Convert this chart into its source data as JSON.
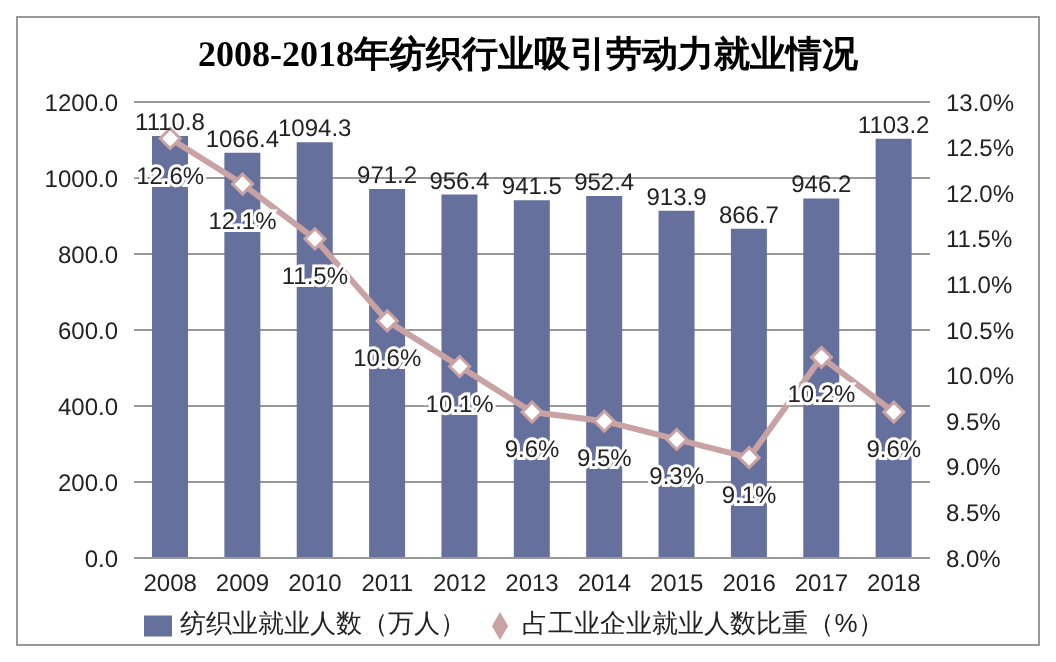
{
  "chart_data": {
    "type": "bar",
    "title": "2008-2018年纺织行业吸引劳动力就业情况",
    "categories": [
      "2008",
      "2009",
      "2010",
      "2011",
      "2012",
      "2013",
      "2014",
      "2015",
      "2016",
      "2017",
      "2018"
    ],
    "series": [
      {
        "name": "纺织业就业人数（万人）",
        "color": "#65709c",
        "values": [
          1110.8,
          1066.4,
          1094.3,
          971.2,
          956.4,
          941.5,
          952.4,
          913.9,
          866.7,
          946.2,
          1103.2
        ],
        "value_labels": [
          "1110.8",
          "1066.4",
          "1094.3",
          "971.2",
          "956.4",
          "941.5",
          "952.4",
          "913.9",
          "866.7",
          "946.2",
          "1103.2"
        ]
      },
      {
        "name": "占工业企业就业人数比重（%）",
        "type": "line",
        "axis": "y2",
        "color": "#c9a3a3",
        "marker": "diamond",
        "values": [
          12.6,
          12.1,
          11.5,
          10.6,
          10.1,
          9.6,
          9.5,
          9.3,
          9.1,
          10.2,
          9.6
        ],
        "value_labels": [
          "12.6%",
          "12.1%",
          "11.5%",
          "10.6%",
          "10.1%",
          "9.6%",
          "9.5%",
          "9.3%",
          "9.1%",
          "10.2%",
          "9.6%"
        ]
      }
    ],
    "ylim": [
      0,
      1200
    ],
    "yticks": [
      {
        "value": 0,
        "label": "0.0"
      },
      {
        "value": 200,
        "label": "200.0"
      },
      {
        "value": 400,
        "label": "400.0"
      },
      {
        "value": 600,
        "label": "600.0"
      },
      {
        "value": 800,
        "label": "800.0"
      },
      {
        "value": 1000,
        "label": "1000.0"
      },
      {
        "value": 1200,
        "label": "1200.0"
      }
    ],
    "y2lim": [
      8,
      13
    ],
    "y2ticks": [
      {
        "value": 8,
        "label": "8.0%"
      },
      {
        "value": 8.5,
        "label": "8.5%"
      },
      {
        "value": 9,
        "label": "9.0%"
      },
      {
        "value": 9.5,
        "label": "9.5%"
      },
      {
        "value": 10,
        "label": "10.0%"
      },
      {
        "value": 10.5,
        "label": "10.5%"
      },
      {
        "value": 11,
        "label": "11.0%"
      },
      {
        "value": 11.5,
        "label": "11.5%"
      },
      {
        "value": 12,
        "label": "12.0%"
      },
      {
        "value": 12.5,
        "label": "12.5%"
      },
      {
        "value": 13,
        "label": "13.0%"
      }
    ],
    "grid": "y",
    "legend": "bottom"
  }
}
